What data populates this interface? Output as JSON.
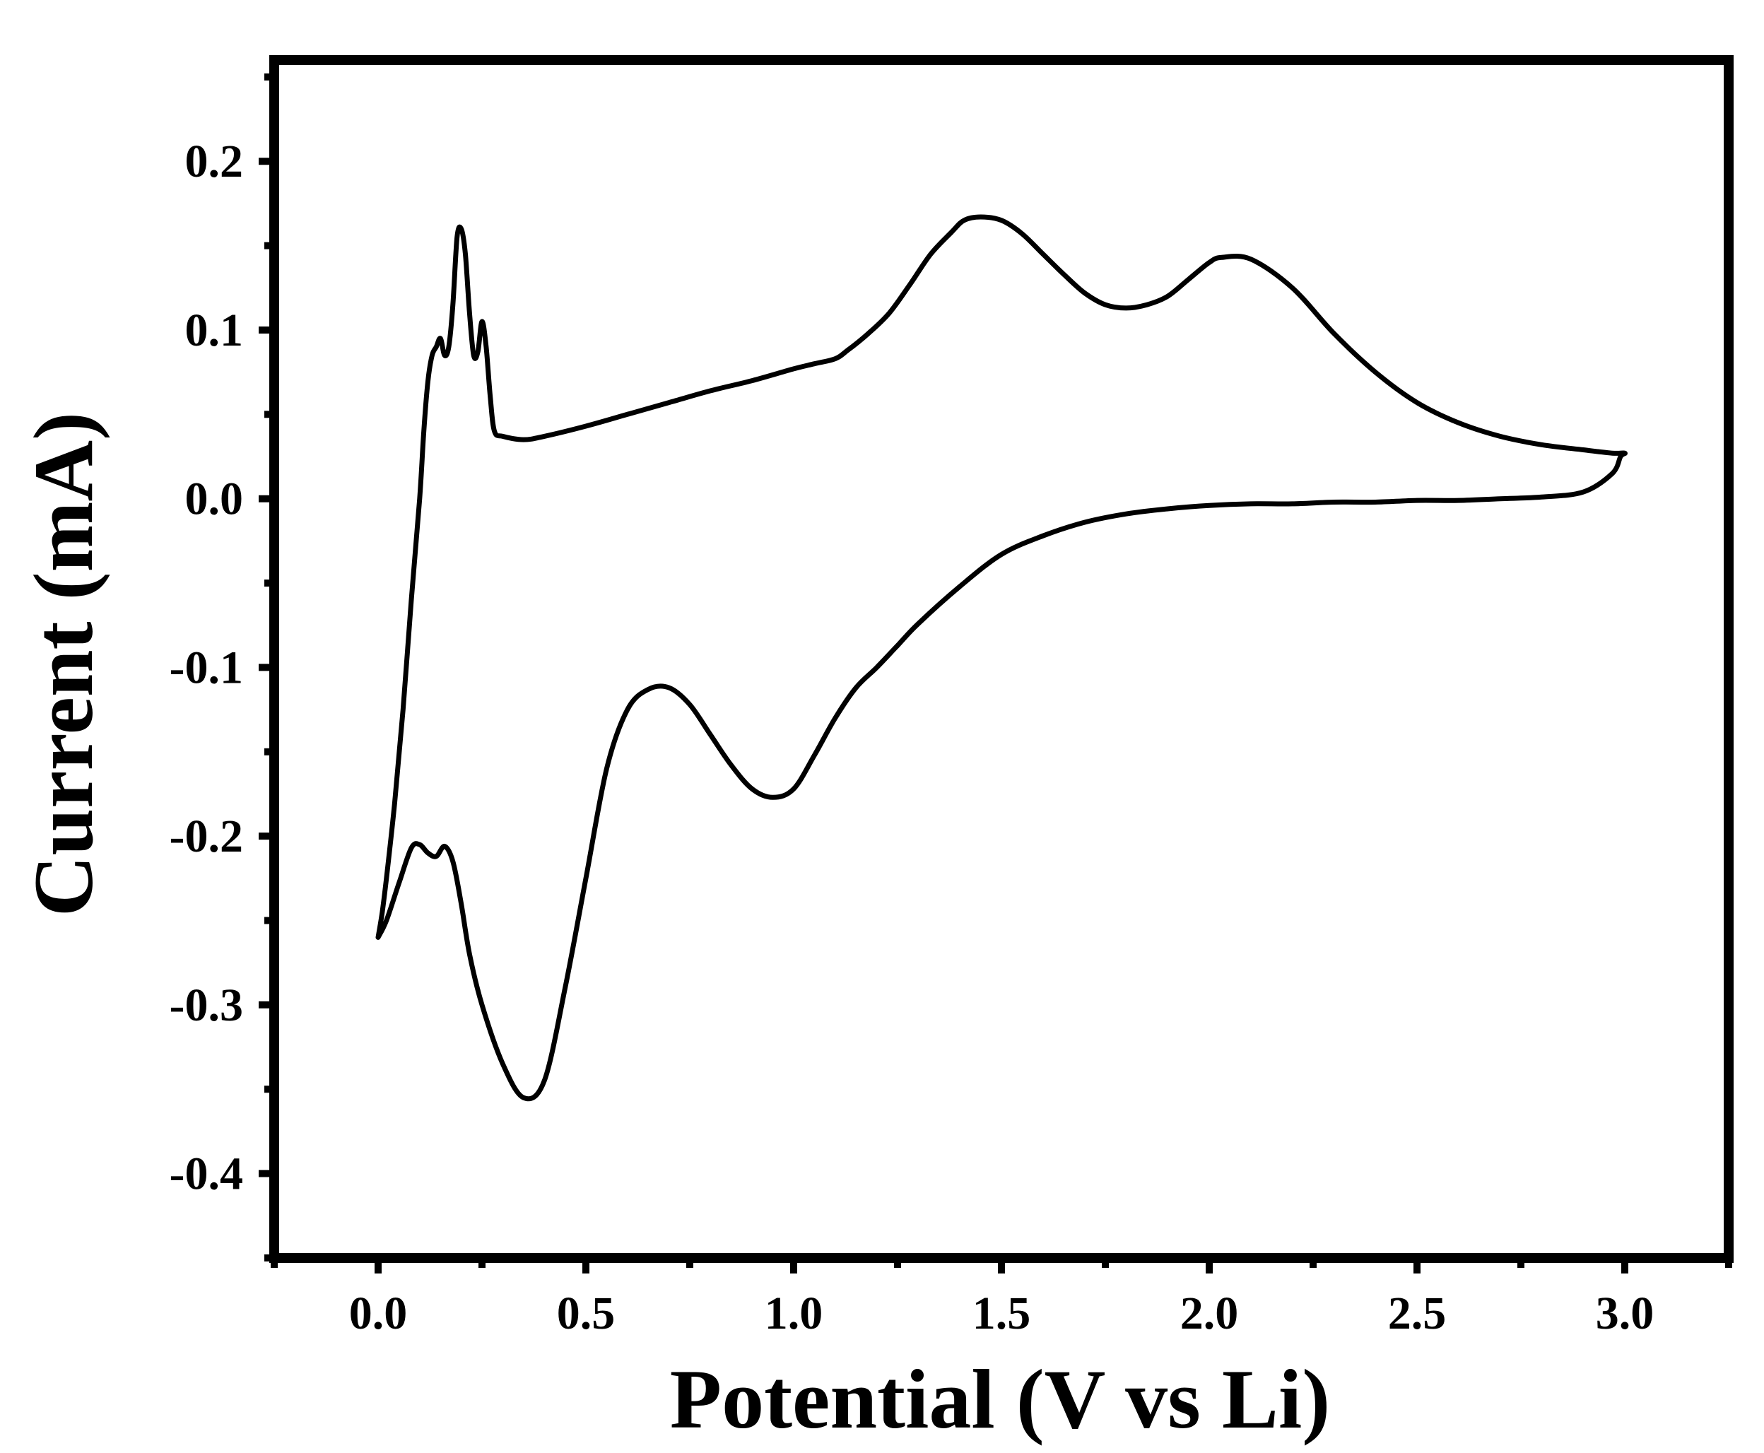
{
  "chart_data": {
    "type": "line",
    "title": "",
    "xlabel": "Potential (V vs Li)",
    "ylabel": "Current (mA)",
    "xlim": [
      -0.25,
      3.25
    ],
    "ylim": [
      -0.45,
      0.26
    ],
    "x_ticks": [
      "0.0",
      "0.5",
      "1.0",
      "1.5",
      "2.0",
      "2.5",
      "3.0"
    ],
    "x_tick_values": [
      0.0,
      0.5,
      1.0,
      1.5,
      2.0,
      2.5,
      3.0
    ],
    "y_ticks": [
      "0.2",
      "0.1",
      "0.0",
      "-0.1",
      "-0.2",
      "-0.3",
      "-0.4"
    ],
    "y_tick_values": [
      0.2,
      0.1,
      0.0,
      -0.1,
      -0.2,
      -0.3,
      -0.4
    ],
    "grid": false,
    "line_color": "#000000",
    "series": [
      {
        "x": [
          0.0,
          0.02,
          0.05,
          0.08,
          0.1,
          0.12,
          0.14,
          0.16,
          0.18,
          0.2,
          0.22,
          0.25,
          0.3,
          0.35,
          0.4,
          0.45,
          0.5,
          0.55,
          0.6,
          0.65,
          0.7,
          0.75,
          0.8,
          0.85,
          0.9,
          0.95,
          1.0,
          1.05,
          1.1,
          1.15,
          1.2,
          1.25,
          1.3,
          1.4,
          1.5,
          1.6,
          1.7,
          1.8,
          1.9,
          2.0,
          2.1,
          2.2,
          2.3,
          2.4,
          2.5,
          2.6,
          2.7,
          2.8,
          2.9,
          2.97,
          2.99,
          3.0,
          2.97,
          2.9,
          2.8,
          2.7,
          2.6,
          2.5,
          2.4,
          2.3,
          2.2,
          2.1,
          2.03,
          2.0,
          1.95,
          1.9,
          1.85,
          1.8,
          1.75,
          1.7,
          1.65,
          1.6,
          1.55,
          1.5,
          1.45,
          1.41,
          1.38,
          1.33,
          1.28,
          1.23,
          1.18,
          1.13,
          1.1,
          1.05,
          1.0,
          0.9,
          0.8,
          0.7,
          0.6,
          0.5,
          0.4,
          0.35,
          0.3,
          0.28,
          0.27,
          0.26,
          0.25,
          0.24,
          0.23,
          0.22,
          0.21,
          0.2,
          0.19,
          0.18,
          0.17,
          0.16,
          0.15,
          0.14,
          0.13,
          0.12,
          0.11,
          0.1,
          0.08,
          0.06,
          0.04,
          0.02,
          0.01,
          0.0
        ],
        "y": [
          -0.26,
          -0.25,
          -0.228,
          -0.207,
          -0.205,
          -0.21,
          -0.212,
          -0.206,
          -0.215,
          -0.24,
          -0.27,
          -0.3,
          -0.335,
          -0.355,
          -0.345,
          -0.29,
          -0.225,
          -0.16,
          -0.125,
          -0.113,
          -0.112,
          -0.122,
          -0.14,
          -0.158,
          -0.172,
          -0.177,
          -0.172,
          -0.152,
          -0.13,
          -0.112,
          -0.1,
          -0.087,
          -0.074,
          -0.052,
          -0.033,
          -0.022,
          -0.014,
          -0.009,
          -0.006,
          -0.004,
          -0.003,
          -0.003,
          -0.002,
          -0.002,
          -0.001,
          -0.001,
          0.0,
          0.001,
          0.004,
          0.015,
          0.025,
          0.027,
          0.027,
          0.029,
          0.032,
          0.037,
          0.045,
          0.057,
          0.075,
          0.098,
          0.125,
          0.142,
          0.143,
          0.14,
          0.13,
          0.12,
          0.115,
          0.113,
          0.115,
          0.122,
          0.133,
          0.145,
          0.157,
          0.165,
          0.167,
          0.165,
          0.158,
          0.145,
          0.127,
          0.11,
          0.098,
          0.088,
          0.083,
          0.08,
          0.077,
          0.07,
          0.064,
          0.057,
          0.05,
          0.043,
          0.037,
          0.035,
          0.037,
          0.04,
          0.06,
          0.09,
          0.105,
          0.087,
          0.085,
          0.11,
          0.145,
          0.16,
          0.155,
          0.115,
          0.09,
          0.085,
          0.095,
          0.09,
          0.085,
          0.07,
          0.04,
          0.0,
          -0.06,
          -0.125,
          -0.18,
          -0.225,
          -0.245,
          -0.26
        ]
      }
    ]
  }
}
